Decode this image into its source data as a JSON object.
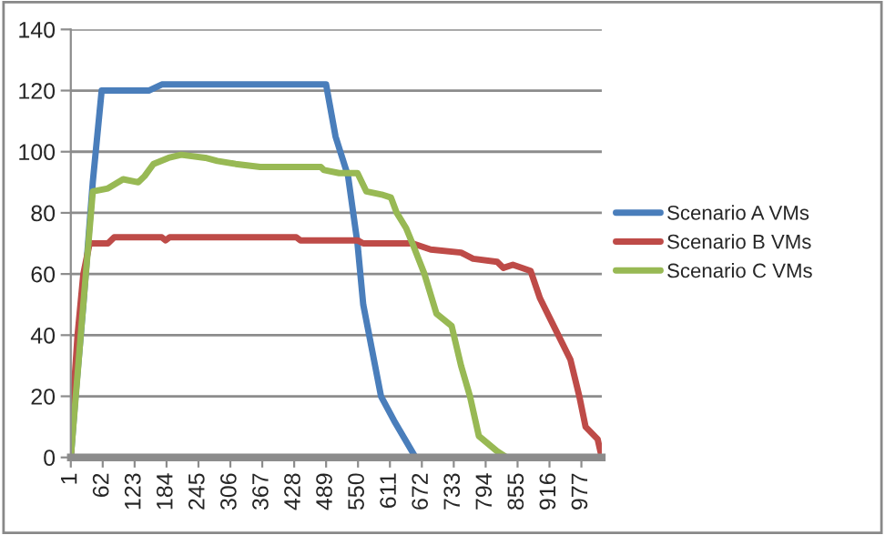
{
  "chart_data": {
    "type": "line",
    "xlim": [
      1,
      1016
    ],
    "xticks": [
      1,
      62,
      123,
      184,
      245,
      306,
      367,
      428,
      489,
      550,
      611,
      672,
      733,
      794,
      855,
      916,
      977
    ],
    "ylim": [
      0,
      140
    ],
    "yticks": [
      0,
      20,
      40,
      60,
      80,
      100,
      120,
      140
    ],
    "grid": "y",
    "legend": "right",
    "marker": "none",
    "line_style": "solid",
    "series": [
      {
        "name": "Scenario A VMs",
        "color": "#4a7ebb",
        "x": [
          1,
          10,
          25,
          43,
          60,
          150,
          175,
          489,
          507,
          531,
          549,
          560,
          577,
          594,
          619,
          643,
          660
        ],
        "values": [
          0,
          20,
          50,
          90,
          120,
          120,
          122,
          122,
          105,
          92,
          70,
          50,
          35,
          20,
          12,
          5,
          0
        ]
      },
      {
        "name": "Scenario B VMs",
        "color": "#be4b48",
        "x": [
          1,
          6,
          14,
          25,
          37,
          72,
          84,
          175,
          182,
          190,
          432,
          440,
          549,
          560,
          654,
          689,
          747,
          770,
          816,
          828,
          846,
          880,
          898,
          927,
          956,
          973,
          985,
          1008,
          1016
        ],
        "values": [
          0,
          20,
          40,
          60,
          70,
          70,
          72,
          72,
          71,
          72,
          72,
          71,
          71,
          70,
          70,
          68,
          67,
          65,
          64,
          62,
          63,
          61,
          52,
          42,
          32,
          20,
          10,
          6,
          0
        ]
      },
      {
        "name": "Scenario C VMs",
        "color": "#98b954",
        "x": [
          1,
          20,
          43,
          72,
          101,
          130,
          142,
          159,
          188,
          212,
          258,
          281,
          316,
          363,
          479,
          485,
          514,
          549,
          566,
          595,
          613,
          624,
          642,
          654,
          677,
          700,
          729,
          747,
          764,
          781,
          816,
          834
        ],
        "values": [
          0,
          40,
          87,
          88,
          91,
          90,
          92,
          96,
          98,
          99,
          98,
          97,
          96,
          95,
          95,
          94,
          93,
          93,
          87,
          86,
          85,
          80,
          75,
          70,
          60,
          47,
          43,
          30,
          20,
          7,
          2,
          0
        ]
      }
    ]
  }
}
